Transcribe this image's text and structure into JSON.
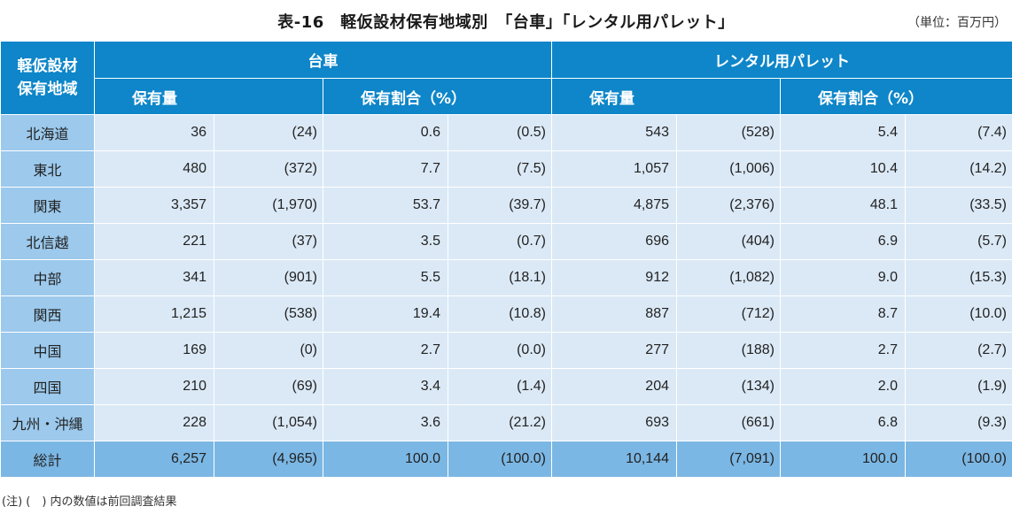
{
  "title": "表‑16　軽仮設材保有地域別　「台車」「レンタル用パレット」",
  "unit": "（単位：百万円）",
  "header": {
    "region_label_line1": "軽仮設材",
    "region_label_line2": "保有地域",
    "group1": "台車",
    "group2": "レンタル用パレット",
    "sub_amount": "保有量",
    "sub_share": "保有割合（%）"
  },
  "rows": [
    {
      "region": "北海道",
      "c_amt": "36",
      "c_amt_prev": "(24)",
      "c_share": "0.6",
      "c_share_prev": "(0.5)",
      "p_amt": "543",
      "p_amt_prev": "(528)",
      "p_share": "5.4",
      "p_share_prev": "(7.4)"
    },
    {
      "region": "東北",
      "c_amt": "480",
      "c_amt_prev": "(372)",
      "c_share": "7.7",
      "c_share_prev": "(7.5)",
      "p_amt": "1,057",
      "p_amt_prev": "(1,006)",
      "p_share": "10.4",
      "p_share_prev": "(14.2)"
    },
    {
      "region": "関東",
      "c_amt": "3,357",
      "c_amt_prev": "(1,970)",
      "c_share": "53.7",
      "c_share_prev": "(39.7)",
      "p_amt": "4,875",
      "p_amt_prev": "(2,376)",
      "p_share": "48.1",
      "p_share_prev": "(33.5)"
    },
    {
      "region": "北信越",
      "c_amt": "221",
      "c_amt_prev": "(37)",
      "c_share": "3.5",
      "c_share_prev": "(0.7)",
      "p_amt": "696",
      "p_amt_prev": "(404)",
      "p_share": "6.9",
      "p_share_prev": "(5.7)"
    },
    {
      "region": "中部",
      "c_amt": "341",
      "c_amt_prev": "(901)",
      "c_share": "5.5",
      "c_share_prev": "(18.1)",
      "p_amt": "912",
      "p_amt_prev": "(1,082)",
      "p_share": "9.0",
      "p_share_prev": "(15.3)"
    },
    {
      "region": "関西",
      "c_amt": "1,215",
      "c_amt_prev": "(538)",
      "c_share": "19.4",
      "c_share_prev": "(10.8)",
      "p_amt": "887",
      "p_amt_prev": "(712)",
      "p_share": "8.7",
      "p_share_prev": "(10.0)"
    },
    {
      "region": "中国",
      "c_amt": "169",
      "c_amt_prev": "(0)",
      "c_share": "2.7",
      "c_share_prev": "(0.0)",
      "p_amt": "277",
      "p_amt_prev": "(188)",
      "p_share": "2.7",
      "p_share_prev": "(2.7)"
    },
    {
      "region": "四国",
      "c_amt": "210",
      "c_amt_prev": "(69)",
      "c_share": "3.4",
      "c_share_prev": "(1.4)",
      "p_amt": "204",
      "p_amt_prev": "(134)",
      "p_share": "2.0",
      "p_share_prev": "(1.9)"
    },
    {
      "region": "九州・沖縄",
      "c_amt": "228",
      "c_amt_prev": "(1,054)",
      "c_share": "3.6",
      "c_share_prev": "(21.2)",
      "p_amt": "693",
      "p_amt_prev": "(661)",
      "p_share": "6.8",
      "p_share_prev": "(9.3)"
    }
  ],
  "total": {
    "region": "総計",
    "c_amt": "6,257",
    "c_amt_prev": "(4,965)",
    "c_share": "100.0",
    "c_share_prev": "(100.0)",
    "p_amt": "10,144",
    "p_amt_prev": "(7,091)",
    "p_share": "100.0",
    "p_share_prev": "(100.0)"
  },
  "note": "(注) (　) 内の数値は前回調査結果"
}
